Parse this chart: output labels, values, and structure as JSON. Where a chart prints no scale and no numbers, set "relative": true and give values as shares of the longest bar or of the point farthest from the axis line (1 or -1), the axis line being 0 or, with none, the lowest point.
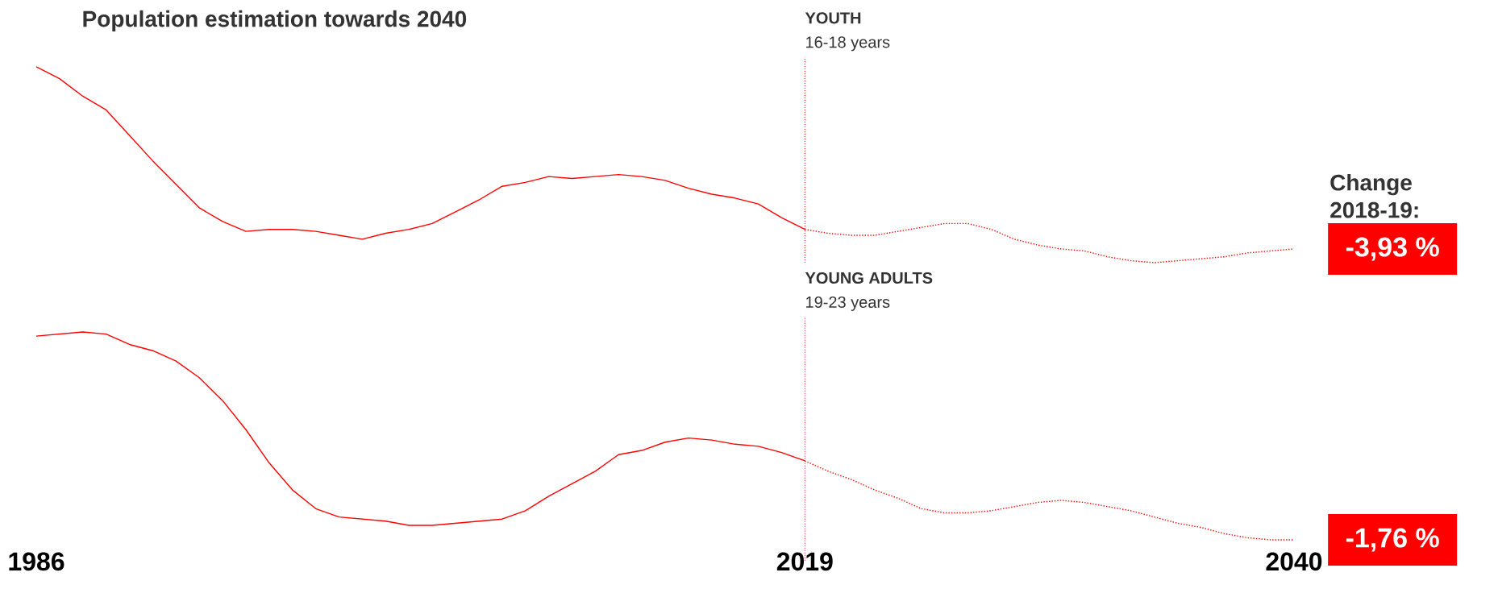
{
  "chart_data": [
    {
      "type": "line",
      "title": "Population estimation towards 2040",
      "relative": true,
      "marker": "none",
      "xlim": [
        1986,
        2040
      ],
      "xticks": [
        1986,
        2019,
        2040
      ],
      "tick_labels": false,
      "ref_lines": [
        {
          "axis": "x",
          "value": 2019,
          "label": "YOUTH",
          "color": "#ff0000",
          "line_style": "dotted"
        }
      ],
      "annotations": [
        "16-18 years",
        "Change 2018-19:",
        "-3,93 %"
      ],
      "series": [
        {
          "color": "#ff0000",
          "line_style": "solid",
          "x": [
            1986,
            1987,
            1988,
            1989,
            1990,
            1991,
            1992,
            1993,
            1994,
            1995,
            1996,
            1997,
            1998,
            1999,
            2000,
            2001,
            2002,
            2003,
            2004,
            2005,
            2006,
            2007,
            2008,
            2009,
            2010,
            2011,
            2012,
            2013,
            2014,
            2015,
            2016,
            2017,
            2018,
            2019
          ],
          "values": [
            1.0,
            0.94,
            0.85,
            0.78,
            0.65,
            0.52,
            0.4,
            0.28,
            0.21,
            0.16,
            0.17,
            0.17,
            0.16,
            0.14,
            0.12,
            0.15,
            0.17,
            0.2,
            0.26,
            0.32,
            0.39,
            0.41,
            0.44,
            0.43,
            0.44,
            0.45,
            0.44,
            0.42,
            0.38,
            0.35,
            0.33,
            0.3,
            0.23,
            0.17
          ]
        },
        {
          "color": "#ff0000",
          "line_style": "dotted",
          "x": [
            2019,
            2020,
            2021,
            2022,
            2023,
            2024,
            2025,
            2026,
            2027,
            2028,
            2029,
            2030,
            2031,
            2032,
            2033,
            2034,
            2035,
            2036,
            2037,
            2038,
            2039,
            2040
          ],
          "values": [
            0.17,
            0.15,
            0.14,
            0.14,
            0.16,
            0.18,
            0.2,
            0.2,
            0.17,
            0.12,
            0.09,
            0.07,
            0.06,
            0.03,
            0.01,
            0.0,
            0.01,
            0.02,
            0.03,
            0.05,
            0.06,
            0.07
          ]
        }
      ]
    },
    {
      "type": "line",
      "relative": true,
      "marker": "none",
      "xlim": [
        1986,
        2040
      ],
      "xticks": [
        1986,
        2019,
        2040
      ],
      "ref_lines": [
        {
          "axis": "x",
          "value": 2019,
          "label": "YOUNG ADULTS",
          "color": "#ff0000",
          "line_style": "dotted"
        }
      ],
      "annotations": [
        "19-23 years",
        "-1,76 %"
      ],
      "series": [
        {
          "color": "#ff0000",
          "line_style": "solid",
          "x": [
            1986,
            1987,
            1988,
            1989,
            1990,
            1991,
            1992,
            1993,
            1994,
            1995,
            1996,
            1997,
            1998,
            1999,
            2000,
            2001,
            2002,
            2003,
            2004,
            2005,
            2006,
            2007,
            2008,
            2009,
            2010,
            2011,
            2012,
            2013,
            2014,
            2015,
            2016,
            2017,
            2018,
            2019
          ],
          "values": [
            0.98,
            0.99,
            1.0,
            0.99,
            0.94,
            0.91,
            0.86,
            0.78,
            0.67,
            0.53,
            0.37,
            0.24,
            0.15,
            0.11,
            0.1,
            0.09,
            0.07,
            0.07,
            0.08,
            0.09,
            0.1,
            0.14,
            0.21,
            0.27,
            0.33,
            0.41,
            0.43,
            0.47,
            0.49,
            0.48,
            0.46,
            0.45,
            0.42,
            0.38
          ]
        },
        {
          "color": "#ff0000",
          "line_style": "dotted",
          "x": [
            2019,
            2020,
            2021,
            2022,
            2023,
            2024,
            2025,
            2026,
            2027,
            2028,
            2029,
            2030,
            2031,
            2032,
            2033,
            2034,
            2035,
            2036,
            2037,
            2038,
            2039,
            2040
          ],
          "values": [
            0.38,
            0.33,
            0.29,
            0.24,
            0.2,
            0.15,
            0.13,
            0.13,
            0.14,
            0.16,
            0.18,
            0.19,
            0.18,
            0.16,
            0.14,
            0.11,
            0.08,
            0.06,
            0.03,
            0.01,
            0.0,
            0.0
          ]
        }
      ]
    }
  ]
}
